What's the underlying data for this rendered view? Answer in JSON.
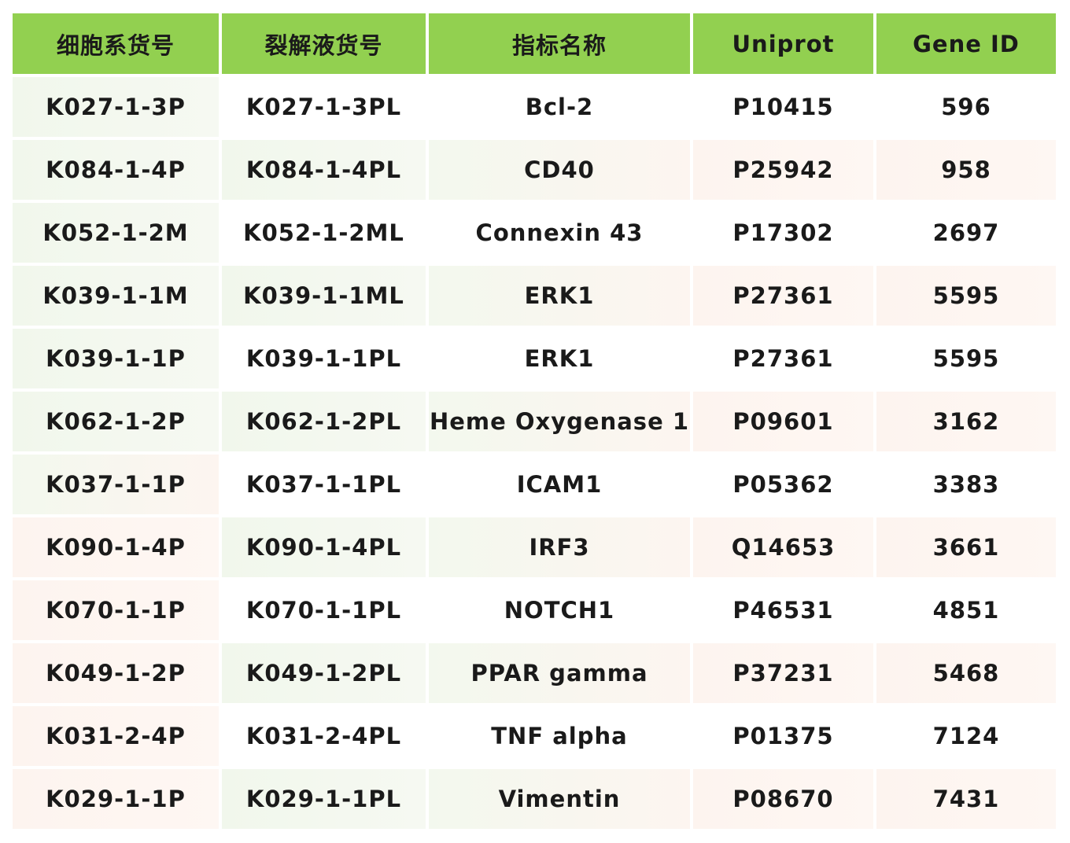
{
  "table": {
    "headers": [
      "细胞系货号",
      "裂解液货号",
      "指标名称",
      "Uniprot",
      "Gene ID"
    ],
    "rows": [
      [
        "K027-1-3P",
        "K027-1-3PL",
        "Bcl-2",
        "P10415",
        "596"
      ],
      [
        "K084-1-4P",
        "K084-1-4PL",
        "CD40",
        "P25942",
        "958"
      ],
      [
        "K052-1-2M",
        "K052-1-2ML",
        "Connexin 43",
        "P17302",
        "2697"
      ],
      [
        "K039-1-1M",
        "K039-1-1ML",
        "ERK1",
        "P27361",
        "5595"
      ],
      [
        "K039-1-1P",
        "K039-1-1PL",
        "ERK1",
        "P27361",
        "5595"
      ],
      [
        "K062-1-2P",
        "K062-1-2PL",
        "Heme Oxygenase 1",
        "P09601",
        "3162"
      ],
      [
        "K037-1-1P",
        "K037-1-1PL",
        "ICAM1",
        "P05362",
        "3383"
      ],
      [
        "K090-1-4P",
        "K090-1-4PL",
        "IRF3",
        "Q14653",
        "3661"
      ],
      [
        "K070-1-1P",
        "K070-1-1PL",
        "NOTCH1",
        "P46531",
        "4851"
      ],
      [
        "K049-1-2P",
        "K049-1-2PL",
        "PPAR gamma",
        "P37231",
        "5468"
      ],
      [
        "K031-2-4P",
        "K031-2-4PL",
        "TNF alpha",
        "P01375",
        "7124"
      ],
      [
        "K029-1-1P",
        "K029-1-1PL",
        "Vimentin",
        "P08670",
        "7431"
      ]
    ]
  },
  "colors": {
    "header_bg": "#92d050",
    "text": "#1a1a1a"
  }
}
